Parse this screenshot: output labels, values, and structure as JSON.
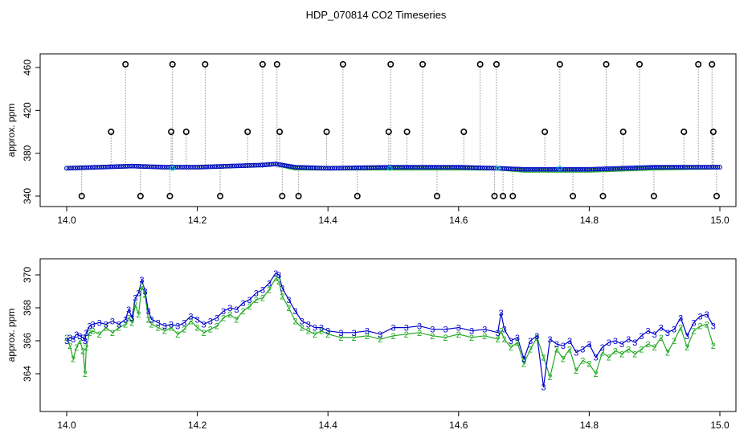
{
  "chart_data": [
    {
      "type": "scatter",
      "title": "HDP_070814  CO2 Timeseries",
      "xlabel": "",
      "ylabel": "approx. ppm",
      "xlim": [
        14.0,
        15.0
      ],
      "ylim": [
        336,
        465
      ],
      "x_ticks": [
        "14.0",
        "14.2",
        "14.4",
        "14.6",
        "14.8",
        "15.0"
      ],
      "y_ticks": [
        "340",
        "380",
        "420",
        "460"
      ],
      "colors": {
        "series2": "#22aa22",
        "series3": "#0000cc",
        "flags": "#000000",
        "drops": "#999999",
        "cyan": "#00cccc"
      },
      "series": [
        {
          "name": "2",
          "x": [
            14.0,
            14.05,
            14.1,
            14.15,
            14.2,
            14.25,
            14.3,
            14.32,
            14.35,
            14.4,
            14.5,
            14.6,
            14.66,
            14.7,
            14.8,
            14.9,
            15.0
          ],
          "values": [
            366,
            367,
            368,
            367,
            367,
            368,
            369,
            370,
            366,
            366,
            366,
            366,
            366,
            364,
            364,
            366,
            367
          ]
        },
        {
          "name": "3",
          "x": [
            14.0,
            14.05,
            14.1,
            14.15,
            14.2,
            14.25,
            14.3,
            14.32,
            14.35,
            14.4,
            14.5,
            14.6,
            14.66,
            14.7,
            14.8,
            14.9,
            15.0
          ],
          "values": [
            366,
            367,
            368,
            367,
            367,
            368,
            369,
            370,
            367,
            366,
            367,
            367,
            366,
            365,
            365,
            367,
            367
          ]
        }
      ],
      "flag_points": {
        "x": [
          14.023,
          14.068,
          14.09,
          14.113,
          14.158,
          14.16,
          14.162,
          14.183,
          14.212,
          14.235,
          14.277,
          14.3,
          14.322,
          14.326,
          14.33,
          14.355,
          14.398,
          14.423,
          14.445,
          14.493,
          14.496,
          14.521,
          14.545,
          14.567,
          14.608,
          14.633,
          14.655,
          14.658,
          14.668,
          14.683,
          14.732,
          14.755,
          14.775,
          14.821,
          14.826,
          14.852,
          14.877,
          14.899,
          14.945,
          14.967,
          14.988,
          14.99,
          14.995
        ],
        "values": [
          340,
          400,
          463,
          340,
          340,
          400,
          463,
          400,
          463,
          340,
          400,
          463,
          463,
          400,
          340,
          340,
          400,
          463,
          340,
          400,
          463,
          400,
          463,
          340,
          400,
          463,
          340,
          463,
          340,
          340,
          400,
          463,
          340,
          340,
          463,
          400,
          463,
          340,
          400,
          463,
          463,
          400,
          340
        ]
      }
    },
    {
      "type": "line",
      "title": "",
      "xlabel": "",
      "ylabel": "approx. ppm",
      "xlim": [
        14.0,
        15.0
      ],
      "ylim": [
        362.3,
        370.6
      ],
      "x_ticks": [
        "14.0",
        "14.2",
        "14.4",
        "14.6",
        "14.8",
        "15.0"
      ],
      "y_ticks": [
        "364",
        "366",
        "368",
        "370"
      ],
      "series": [
        {
          "name": "2",
          "x": [
            14.0,
            14.005,
            14.01,
            14.015,
            14.02,
            14.025,
            14.028,
            14.03,
            14.035,
            14.04,
            14.05,
            14.06,
            14.07,
            14.08,
            14.09,
            14.095,
            14.1,
            14.105,
            14.11,
            14.115,
            14.12,
            14.125,
            14.13,
            14.14,
            14.15,
            14.16,
            14.17,
            14.18,
            14.19,
            14.2,
            14.21,
            14.22,
            14.23,
            14.24,
            14.25,
            14.26,
            14.27,
            14.28,
            14.29,
            14.3,
            14.31,
            14.32,
            14.325,
            14.33,
            14.34,
            14.35,
            14.36,
            14.37,
            14.38,
            14.39,
            14.4,
            14.42,
            14.44,
            14.46,
            14.48,
            14.5,
            14.52,
            14.54,
            14.56,
            14.58,
            14.6,
            14.62,
            14.64,
            14.66,
            14.665,
            14.67,
            14.68,
            14.69,
            14.7,
            14.71,
            14.72,
            14.73,
            14.74,
            14.75,
            14.76,
            14.77,
            14.78,
            14.79,
            14.8,
            14.81,
            14.82,
            14.83,
            14.84,
            14.85,
            14.86,
            14.87,
            14.88,
            14.89,
            14.9,
            14.91,
            14.92,
            14.93,
            14.94,
            14.95,
            14.96,
            14.97,
            14.98,
            14.99
          ],
          "values": [
            366.2,
            365.7,
            364.9,
            365.6,
            366.0,
            365.4,
            364.0,
            365.6,
            366.5,
            366.6,
            366.4,
            366.8,
            366.5,
            366.8,
            367.0,
            367.4,
            367.1,
            368.2,
            367.6,
            369.3,
            368.8,
            367.3,
            367.0,
            366.8,
            366.6,
            366.8,
            366.4,
            366.7,
            367.2,
            366.8,
            366.5,
            366.7,
            366.9,
            367.4,
            367.6,
            367.3,
            367.8,
            368.1,
            368.5,
            368.6,
            369.1,
            369.8,
            369.6,
            368.7,
            368.0,
            367.2,
            366.8,
            366.6,
            366.4,
            366.6,
            366.4,
            366.2,
            366.2,
            366.3,
            366.1,
            366.3,
            366.4,
            366.5,
            366.3,
            366.2,
            366.4,
            366.2,
            366.3,
            366.1,
            366.6,
            366.1,
            365.6,
            365.9,
            364.6,
            365.5,
            366.2,
            365.0,
            363.8,
            365.5,
            364.9,
            365.5,
            364.2,
            364.8,
            364.6,
            364.0,
            365.3,
            365.0,
            365.4,
            365.2,
            365.5,
            365.2,
            365.5,
            365.8,
            365.6,
            366.2,
            365.3,
            366.0,
            366.8,
            365.6,
            366.6,
            366.9,
            367.0,
            365.7
          ]
        },
        {
          "name": "3",
          "x": [
            14.0,
            14.005,
            14.01,
            14.015,
            14.02,
            14.025,
            14.028,
            14.03,
            14.035,
            14.04,
            14.05,
            14.06,
            14.07,
            14.08,
            14.09,
            14.095,
            14.1,
            14.105,
            14.11,
            14.115,
            14.12,
            14.125,
            14.13,
            14.14,
            14.15,
            14.16,
            14.17,
            14.18,
            14.19,
            14.2,
            14.21,
            14.22,
            14.23,
            14.24,
            14.25,
            14.26,
            14.27,
            14.28,
            14.29,
            14.3,
            14.31,
            14.32,
            14.325,
            14.33,
            14.34,
            14.35,
            14.36,
            14.37,
            14.38,
            14.39,
            14.4,
            14.42,
            14.44,
            14.46,
            14.48,
            14.5,
            14.52,
            14.54,
            14.56,
            14.58,
            14.6,
            14.62,
            14.64,
            14.66,
            14.665,
            14.67,
            14.68,
            14.69,
            14.7,
            14.71,
            14.72,
            14.73,
            14.74,
            14.75,
            14.76,
            14.77,
            14.78,
            14.79,
            14.8,
            14.81,
            14.82,
            14.83,
            14.84,
            14.85,
            14.86,
            14.87,
            14.88,
            14.89,
            14.9,
            14.91,
            14.92,
            14.93,
            14.94,
            14.95,
            14.96,
            14.97,
            14.98,
            14.99
          ],
          "values": [
            366.0,
            366.2,
            366.1,
            366.4,
            366.3,
            366.2,
            366.0,
            366.5,
            366.9,
            367.0,
            367.1,
            367.0,
            367.2,
            367.0,
            367.3,
            367.9,
            367.4,
            368.6,
            368.9,
            369.7,
            369.0,
            367.8,
            367.3,
            367.1,
            366.9,
            367.0,
            366.9,
            367.1,
            367.5,
            367.3,
            367.0,
            367.2,
            367.4,
            367.8,
            368.0,
            367.9,
            368.3,
            368.5,
            368.9,
            369.1,
            369.5,
            370.1,
            370.0,
            369.2,
            368.5,
            367.8,
            367.2,
            367.0,
            366.8,
            366.8,
            366.6,
            366.5,
            366.5,
            366.6,
            366.4,
            366.8,
            366.8,
            366.9,
            366.7,
            366.7,
            366.8,
            366.6,
            366.7,
            366.5,
            367.7,
            366.7,
            366.0,
            366.2,
            364.9,
            366.0,
            366.3,
            363.2,
            366.1,
            365.8,
            365.7,
            366.0,
            365.3,
            365.5,
            365.8,
            365.0,
            365.6,
            365.9,
            366.0,
            365.8,
            366.1,
            365.9,
            366.3,
            366.6,
            366.4,
            366.8,
            366.5,
            366.7,
            367.4,
            366.3,
            367.1,
            367.5,
            367.6,
            366.9
          ]
        }
      ]
    }
  ]
}
